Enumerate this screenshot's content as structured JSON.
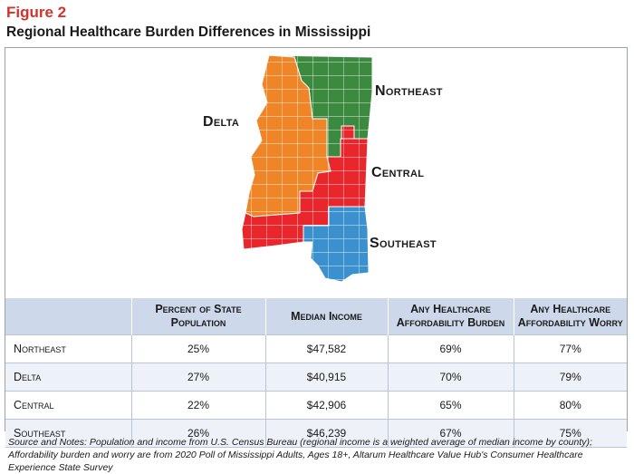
{
  "figure": {
    "label": "Figure 2",
    "title": "Regional Healthcare Burden Differences in Mississippi"
  },
  "map": {
    "regions": [
      {
        "key": "northeast",
        "label": "Northeast",
        "color": "#3c8a3f"
      },
      {
        "key": "delta",
        "label": "Delta",
        "color": "#f08527"
      },
      {
        "key": "central",
        "label": "Central",
        "color": "#e8262b"
      },
      {
        "key": "southeast",
        "label": "Southeast",
        "color": "#3a91cd"
      }
    ]
  },
  "table": {
    "headers": [
      "",
      "Percent of State Population",
      "Median Income",
      "Any Healthcare Affordability Burden",
      "Any Healthcare Affordability Worry"
    ],
    "rows": [
      [
        "Northeast",
        "25%",
        "$47,582",
        "69%",
        "77%"
      ],
      [
        "Delta",
        "27%",
        "$40,915",
        "70%",
        "79%"
      ],
      [
        "Central",
        "22%",
        "$42,906",
        "65%",
        "80%"
      ],
      [
        "Southeast",
        "26%",
        "$46,239",
        "67%",
        "75%"
      ]
    ]
  },
  "notes": "Source and Notes: Population and income from U.S. Census Bureau (regional income is a weighted average of median income by county); Affordability burden and worry are from 2020 Poll of Mississippi Adults, Ages 18+, Altarum Healthcare Value Hub's Consumer Healthcare Experience State Survey"
}
